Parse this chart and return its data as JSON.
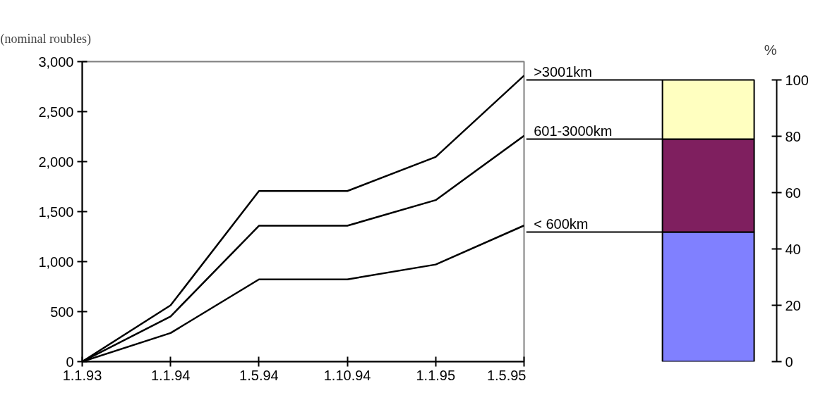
{
  "chart_data": [
    {
      "type": "line",
      "ylabel": "(nominal roubles)",
      "categories": [
        "1.1.93",
        "1.1.94",
        "1.5.94",
        "1.10.94",
        "1.1.95",
        "1.5.95"
      ],
      "series": [
        {
          "color": "#000000",
          "values": [
            0,
            286,
            822,
            822,
            971,
            1361
          ]
        },
        {
          "color": "#000000",
          "values": [
            0,
            452,
            1359,
            1359,
            1615,
            2259
          ]
        },
        {
          "color": "#000000",
          "values": [
            0,
            563,
            1706,
            1706,
            2047,
            2860
          ]
        }
      ],
      "ylim": [
        0,
        3000
      ],
      "yticks": [
        0,
        500,
        {
          "value": 1000,
          "label": "1,000"
        },
        {
          "value": 1500,
          "label": "1,500"
        },
        {
          "value": 2000,
          "label": "2,000"
        },
        {
          "value": 2500,
          "label": "2,500"
        },
        {
          "value": 3000,
          "label": "3,000"
        }
      ],
      "grid": false,
      "line_style": "solid"
    },
    {
      "type": "bar",
      "stacked": true,
      "ylabel": "%",
      "categories": [
        null
      ],
      "series": [
        {
          "name": "< 600km",
          "color": "#8080ff",
          "values": [
            46
          ]
        },
        {
          "name": "601-3000km",
          "color": "#7f1f5f",
          "values": [
            33
          ]
        },
        {
          "name": ">3001km",
          "color": "#ffffc0",
          "values": [
            21
          ]
        }
      ],
      "ylim": [
        0,
        100
      ],
      "yticks": [
        0,
        20,
        40,
        60,
        80,
        100
      ],
      "grid": false,
      "tick_labels": "y"
    }
  ]
}
